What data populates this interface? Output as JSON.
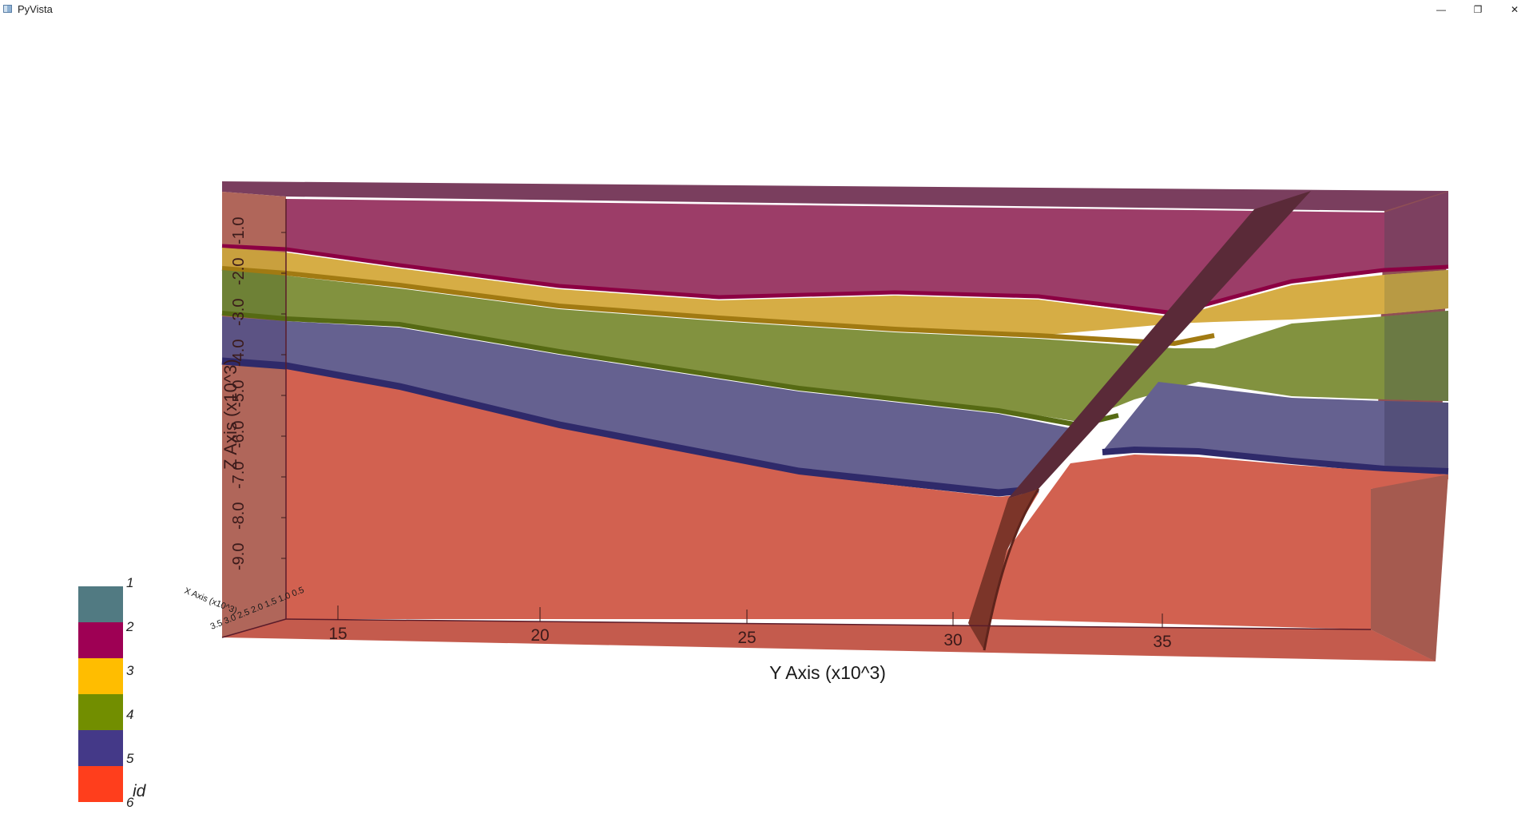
{
  "window": {
    "title": "PyVista",
    "minimize_glyph": "—",
    "restore_glyph": "❐",
    "close_glyph": "✕"
  },
  "axes": {
    "y_axis_title": "Y Axis (x10^3)",
    "z_axis_title": "Z Axis (x10^3)",
    "x_axis_title": "X Axis (x10^3)",
    "y_ticks": [
      "15",
      "20",
      "25",
      "30",
      "35"
    ],
    "z_ticks": [
      "-1.0",
      "-2.0",
      "-3.0",
      "-4.0",
      "-5.0",
      "-6.0",
      "-7.0",
      "-8.0",
      "-9.0"
    ],
    "x_ticks_text": "3.5 3.0 2.5 2.0 1.5 1.0 0.5"
  },
  "legend": {
    "title": "id",
    "entries": [
      {
        "label": "1",
        "color": "#517a82"
      },
      {
        "label": "2",
        "color": "#9e0054"
      },
      {
        "label": "3",
        "color": "#ffbd00"
      },
      {
        "label": "4",
        "color": "#728e00"
      },
      {
        "label": "5",
        "color": "#443988"
      },
      {
        "label": "6",
        "color": "#ff3e1c"
      }
    ]
  },
  "colors": {
    "background": "#ffffff",
    "layer2": "#9c3d68",
    "layer3": "#d6ad45",
    "layer4": "#82923f",
    "layer5": "#656190",
    "layer6": "#d26150",
    "fault": "#5a2a38"
  }
}
